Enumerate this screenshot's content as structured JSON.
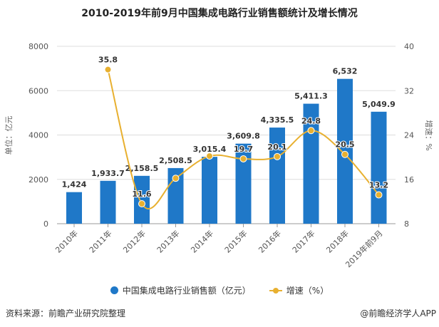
{
  "chart_data": {
    "type": "bar+line",
    "title": "2010-2019年前9月中国集成电路行业销售额统计及增长情况",
    "categories": [
      "2010年",
      "2011年",
      "2012年",
      "2013年",
      "2014年",
      "2015年",
      "2016年",
      "2017年",
      "2018年",
      "2019年前9月"
    ],
    "series": [
      {
        "name": "中国集成电路行业销售额（亿元）",
        "type": "bar",
        "axis": "left",
        "color": "#1f78c8",
        "values": [
          1424,
          1933.7,
          2158.5,
          2508.5,
          3015.4,
          3609.8,
          4335.5,
          5411.3,
          6532,
          5049.9
        ],
        "labels": [
          "1,424",
          "1,933.7",
          "2,158.5",
          "2,508.5",
          "3,015.4",
          "3,609.8",
          "4,335.5",
          "5,411.3",
          "6,532",
          "5,049.9"
        ]
      },
      {
        "name": "增速（%）",
        "type": "line",
        "axis": "right",
        "color": "#e8b030",
        "values": [
          null,
          35.8,
          11.6,
          16.2,
          20.2,
          19.7,
          20.1,
          24.8,
          20.5,
          13.2
        ],
        "labels": [
          "",
          "35.8",
          "11.6",
          "",
          "",
          "19.7",
          "20.1",
          "24.8",
          "20.5",
          "13.2"
        ]
      }
    ],
    "ylabel": "单位：亿元",
    "y2label": "增速：%",
    "ylim": [
      0,
      8000
    ],
    "yticks": [
      0,
      2000,
      4000,
      6000,
      8000
    ],
    "y2lim": [
      8,
      40
    ],
    "y2ticks": [
      8,
      16,
      24,
      32,
      40
    ],
    "grid": true,
    "legend": "bottom"
  },
  "source": "资料来源：前瞻产业研究院整理",
  "credit": "@前瞻经济学人APP"
}
